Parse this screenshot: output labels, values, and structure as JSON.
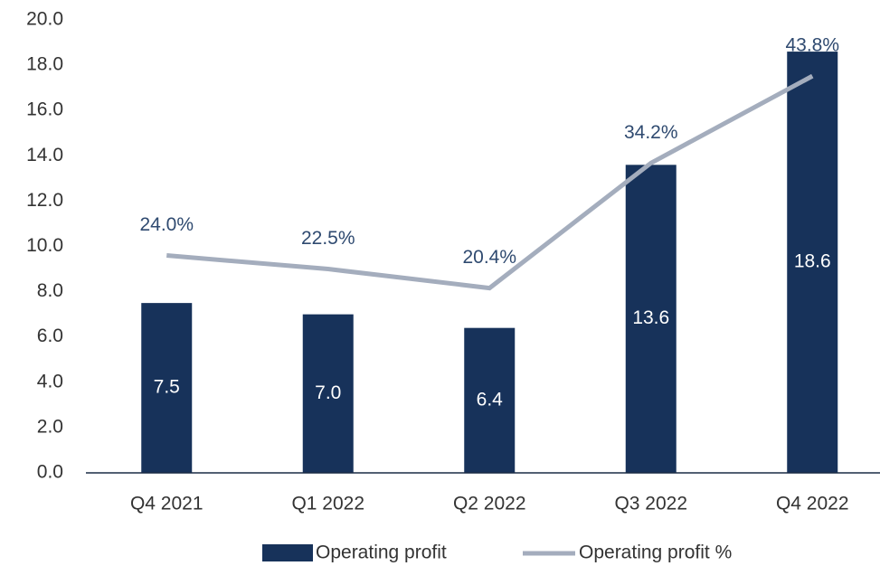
{
  "chart_data": {
    "type": "bar_line",
    "categories": [
      "Q4 2021",
      "Q1 2022",
      "Q2 2022",
      "Q3 2022",
      "Q4 2022"
    ],
    "series": [
      {
        "name": "Operating profit",
        "color": "#17325a",
        "values": [
          7.5,
          7.0,
          6.4,
          13.6,
          18.6
        ],
        "value_labels": [
          "7.5",
          "7.0",
          "6.4",
          "13.6",
          "18.6"
        ]
      },
      {
        "name": "Operating profit %",
        "color": "#a4adbd",
        "axis": "y2",
        "values": [
          24.0,
          22.5,
          20.4,
          34.2,
          43.8
        ],
        "value_labels": [
          "24.0%",
          "22.5%",
          "20.4%",
          "34.2%",
          "43.8%"
        ]
      }
    ],
    "ylim": [
      0,
      20
    ],
    "yticks": [
      {
        "value": 0,
        "label": "0.0"
      },
      {
        "value": 2,
        "label": "2.0"
      },
      {
        "value": 4,
        "label": "4.0"
      },
      {
        "value": 6,
        "label": "6.0"
      },
      {
        "value": 8,
        "label": "8.0"
      },
      {
        "value": 10,
        "label": "10.0"
      },
      {
        "value": 12,
        "label": "12.0"
      },
      {
        "value": 14,
        "label": "14.0"
      },
      {
        "value": 16,
        "label": "16.0"
      },
      {
        "value": 18,
        "label": "18.0"
      },
      {
        "value": 20,
        "label": "20.0"
      }
    ],
    "y2lim": [
      0,
      50
    ],
    "grid": false,
    "legend": "bottom"
  }
}
